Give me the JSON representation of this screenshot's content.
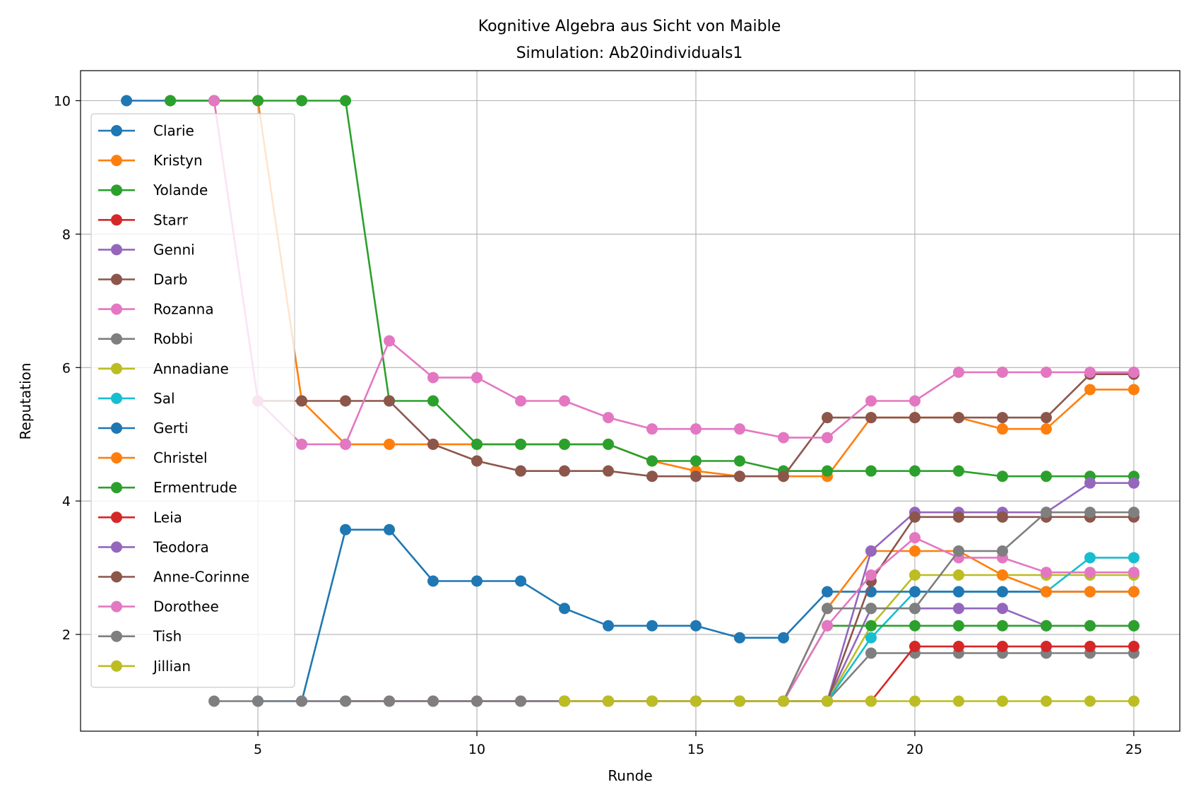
{
  "chart_data": {
    "type": "line",
    "title": "Kognitive Algebra aus Sicht von Maible",
    "subtitle": "Simulation: Ab20individuals1",
    "xlabel": "Runde",
    "ylabel": "Reputation",
    "xlim": [
      0.95,
      26.05
    ],
    "ylim": [
      0.55,
      10.45
    ],
    "xticks": [
      5,
      10,
      15,
      20,
      25
    ],
    "yticks": [
      2,
      4,
      6,
      8,
      10
    ],
    "grid": true,
    "legend_position": "upper-left",
    "series": [
      {
        "name": "Clarie",
        "color": "#1f77b4",
        "x": [
          2,
          3,
          4
        ],
        "y": [
          10,
          10,
          10
        ]
      },
      {
        "name": "Kristyn",
        "color": "#ff7f0e",
        "x": [
          4,
          5,
          6,
          7,
          8,
          9,
          10,
          11,
          12,
          13,
          14,
          15,
          16,
          17,
          18,
          19,
          20,
          21,
          22,
          23,
          24,
          25
        ],
        "y": [
          10,
          10,
          5.5,
          4.85,
          4.85,
          4.85,
          4.85,
          4.85,
          4.85,
          4.85,
          4.6,
          4.45,
          4.37,
          4.37,
          4.37,
          5.25,
          5.25,
          5.25,
          5.08,
          5.08,
          5.67,
          5.67
        ]
      },
      {
        "name": "Yolande",
        "color": "#2ca02c",
        "x": [
          3,
          4,
          5,
          6,
          7,
          8,
          9,
          10,
          11,
          12,
          13,
          14,
          15,
          16,
          17,
          18,
          19,
          20,
          21,
          22,
          23,
          24,
          25
        ],
        "y": [
          10,
          10,
          10,
          10,
          10,
          5.5,
          5.5,
          4.85,
          4.85,
          4.85,
          4.85,
          4.6,
          4.6,
          4.6,
          4.45,
          4.45,
          4.45,
          4.45,
          4.45,
          4.37,
          4.37,
          4.37,
          4.37
        ]
      },
      {
        "name": "Starr",
        "color": "#d62728",
        "x": [],
        "y": []
      },
      {
        "name": "Genni",
        "color": "#9467bd",
        "x": [],
        "y": []
      },
      {
        "name": "Darb",
        "color": "#8c564b",
        "x": [
          5,
          6,
          7,
          8,
          9,
          10,
          11,
          12,
          13,
          14,
          15,
          16,
          17,
          18,
          19,
          20,
          21,
          22,
          23,
          24,
          25
        ],
        "y": [
          5.5,
          5.5,
          5.5,
          5.5,
          4.85,
          4.6,
          4.45,
          4.45,
          4.45,
          4.37,
          4.37,
          4.37,
          4.37,
          5.25,
          5.25,
          5.25,
          5.25,
          5.25,
          5.25,
          5.9,
          5.9
        ]
      },
      {
        "name": "Rozanna",
        "color": "#e377c2",
        "x": [
          4,
          5,
          6,
          7,
          8,
          9,
          10,
          11,
          12,
          13,
          14,
          15,
          16,
          17,
          18,
          19,
          20,
          21,
          22,
          23,
          24,
          25
        ],
        "y": [
          10,
          5.5,
          4.85,
          4.85,
          6.4,
          5.85,
          5.85,
          5.5,
          5.5,
          5.25,
          5.08,
          5.08,
          5.08,
          4.95,
          4.95,
          5.5,
          5.5,
          5.93,
          5.93,
          5.93,
          5.93,
          5.93
        ]
      },
      {
        "name": "Robbi",
        "color": "#7f7f7f",
        "x": [],
        "y": []
      },
      {
        "name": "Annadiane",
        "color": "#bcbd22",
        "x": [],
        "y": []
      },
      {
        "name": "Sal",
        "color": "#17becf",
        "x": [
          12,
          13,
          14,
          15,
          16,
          17,
          18,
          19,
          20,
          21,
          22,
          23,
          24,
          25
        ],
        "y": [
          1,
          1,
          1,
          1,
          1,
          1,
          1,
          1.95,
          2.64,
          2.64,
          2.64,
          2.64,
          3.15,
          3.15
        ]
      },
      {
        "name": "Gerti",
        "color": "#1f77b4",
        "x": [
          5,
          6,
          7,
          8,
          9,
          10,
          11,
          12,
          13,
          14,
          15,
          16,
          17,
          18,
          19,
          20,
          21,
          22,
          23,
          24,
          25
        ],
        "y": [
          1,
          1,
          3.57,
          3.57,
          2.8,
          2.8,
          2.8,
          2.39,
          2.13,
          2.13,
          2.13,
          1.95,
          1.95,
          2.64,
          2.64,
          2.64,
          2.64,
          2.64,
          2.64,
          2.64,
          2.64
        ]
      },
      {
        "name": "Christel",
        "color": "#ff7f0e",
        "x": [
          12,
          13,
          14,
          15,
          16,
          17,
          18,
          19,
          20,
          21,
          22,
          23,
          24,
          25
        ],
        "y": [
          1,
          1,
          1,
          1,
          1,
          1,
          2.39,
          3.25,
          3.25,
          3.25,
          2.89,
          2.64,
          2.64,
          2.64
        ]
      },
      {
        "name": "Ermentrude",
        "color": "#2ca02c",
        "x": [
          12,
          13,
          14,
          15,
          16,
          17,
          18,
          19,
          20,
          21,
          22,
          23,
          24,
          25
        ],
        "y": [
          1,
          1,
          1,
          1,
          1,
          1,
          2.13,
          2.13,
          2.13,
          2.13,
          2.13,
          2.13,
          2.13,
          2.13
        ]
      },
      {
        "name": "Leia",
        "color": "#d62728",
        "x": [
          12,
          13,
          14,
          15,
          16,
          17,
          18,
          19,
          20,
          21,
          22,
          23,
          24,
          25
        ],
        "y": [
          1,
          1,
          1,
          1,
          1,
          1,
          1,
          1,
          1.82,
          1.82,
          1.82,
          1.82,
          1.82,
          1.82
        ]
      },
      {
        "name": "Teodora",
        "color": "#9467bd",
        "x": [
          6,
          7,
          8,
          9,
          10,
          11,
          12,
          13,
          14,
          15,
          16,
          17,
          18,
          19,
          20,
          21,
          22,
          23,
          24,
          25
        ],
        "y": [
          1,
          1,
          1,
          1,
          1,
          1,
          1,
          1,
          1,
          1,
          1,
          1,
          1,
          3.25,
          3.83,
          3.83,
          3.83,
          3.83,
          4.27,
          4.27
        ]
      },
      {
        "name": "Anne-Corinne",
        "color": "#8c564b",
        "x": [
          7,
          8,
          9,
          10,
          11,
          12,
          13,
          14,
          15,
          16,
          17,
          18,
          19,
          20,
          21,
          22,
          23,
          24,
          25
        ],
        "y": [
          1,
          1,
          1,
          1,
          1,
          1,
          1,
          1,
          1,
          1,
          1,
          1,
          2.8,
          3.76,
          3.76,
          3.76,
          3.76,
          3.76,
          3.76
        ]
      },
      {
        "name": "Dorothee",
        "color": "#e377c2",
        "x": [
          8,
          9,
          10,
          11,
          12,
          13,
          14,
          15,
          16,
          17,
          18,
          19,
          20,
          21,
          22,
          23,
          24,
          25
        ],
        "y": [
          1,
          1,
          1,
          1,
          1,
          1,
          1,
          1,
          1,
          1,
          2.13,
          2.89,
          3.45,
          3.15,
          3.15,
          2.93,
          2.93,
          2.93
        ]
      },
      {
        "name": "Tish",
        "color": "#7f7f7f",
        "x": [
          4,
          5,
          6,
          7,
          8,
          9,
          10,
          11,
          12,
          13,
          14,
          15,
          16,
          17,
          18,
          19,
          20,
          21,
          22,
          23,
          24,
          25
        ],
        "y": [
          1,
          1,
          1,
          1,
          1,
          1,
          1,
          1,
          1,
          1,
          1,
          1,
          1,
          1,
          2.39,
          2.39,
          2.39,
          3.25,
          3.25,
          3.83,
          3.83,
          3.83
        ]
      },
      {
        "name": "Jillian",
        "color": "#bcbd22",
        "x": [
          12,
          13,
          14,
          15,
          16,
          17,
          18,
          19,
          20,
          21,
          22,
          23,
          24,
          25
        ],
        "y": [
          1,
          1,
          1,
          1,
          1,
          1,
          1,
          1,
          1,
          1,
          1,
          1,
          1,
          1
        ]
      }
    ],
    "extra_lines": [
      {
        "color": "#7f7f7f",
        "x": [
          18,
          19,
          20,
          21,
          22,
          23,
          24,
          25
        ],
        "y": [
          1,
          1.72,
          1.72,
          1.72,
          1.72,
          1.72,
          1.72,
          1.72
        ]
      },
      {
        "color": "#9467bd",
        "x": [
          18,
          19,
          20,
          21,
          22,
          23,
          24,
          25
        ],
        "y": [
          1,
          2.39,
          2.39,
          2.39,
          2.39,
          2.13,
          2.13,
          2.13
        ]
      },
      {
        "color": "#bcbd22",
        "x": [
          18,
          19,
          20,
          21,
          22,
          23,
          24,
          25
        ],
        "y": [
          1,
          2.13,
          2.89,
          2.89,
          2.89,
          2.89,
          2.89,
          2.89
        ]
      }
    ]
  }
}
